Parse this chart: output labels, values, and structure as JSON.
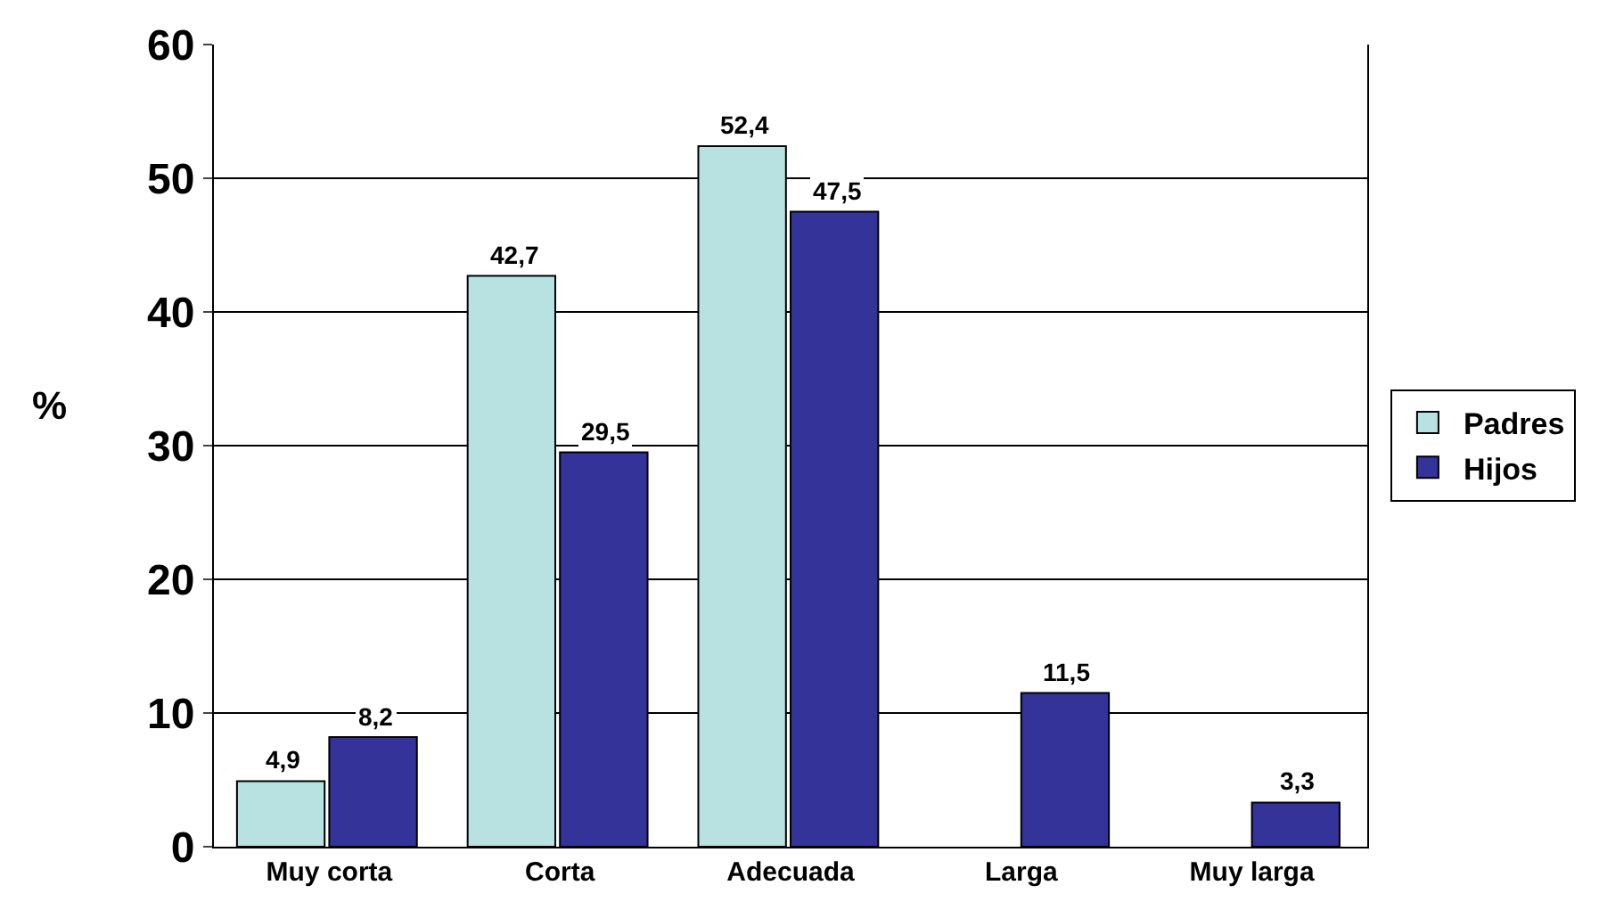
{
  "chart_data": {
    "type": "bar",
    "ylabel": "%",
    "categories": [
      "Muy corta",
      "Corta",
      "Adecuada",
      "Larga",
      "Muy larga"
    ],
    "series": [
      {
        "name": "Padres",
        "color": "#b8e2e2",
        "values": [
          4.9,
          42.7,
          52.4,
          null,
          null
        ],
        "value_labels": [
          "4,9",
          "42,7",
          "52,4",
          null,
          null
        ]
      },
      {
        "name": "Hijos",
        "color": "#333399",
        "values": [
          8.2,
          29.5,
          47.5,
          11.5,
          3.3
        ],
        "value_labels": [
          "8,2",
          "29,5",
          "47,5",
          "11,5",
          "3,3"
        ]
      }
    ],
    "ylim": [
      0,
      60
    ],
    "yticks": [
      0,
      10,
      20,
      30,
      40,
      50,
      60
    ],
    "grid": "y",
    "legend": "right"
  }
}
